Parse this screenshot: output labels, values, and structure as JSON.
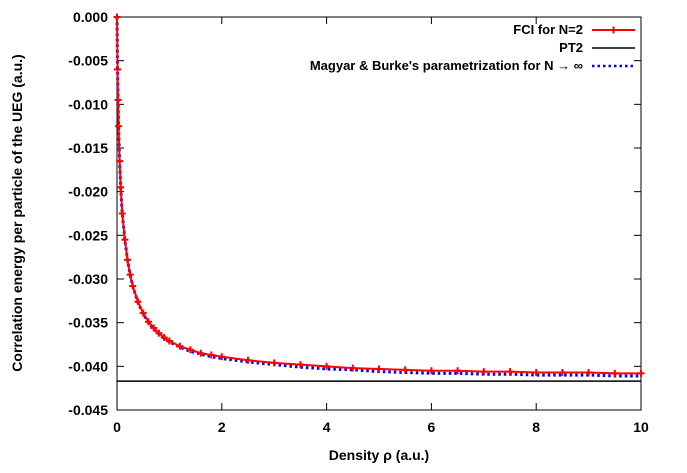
{
  "chart_data": {
    "type": "line",
    "xlabel": "Density  ρ (a.u.)",
    "ylabel": "Correlation energy per particle of the UEG (a.u.)",
    "xlim": [
      0,
      10
    ],
    "ylim": [
      -0.045,
      0.0
    ],
    "x_ticks": [
      0,
      2,
      4,
      6,
      8,
      10
    ],
    "x_tick_labels": [
      "0",
      "2",
      "4",
      "6",
      "8",
      "10"
    ],
    "y_ticks": [
      0.0,
      -0.005,
      -0.01,
      -0.015,
      -0.02,
      -0.025,
      -0.03,
      -0.035,
      -0.04,
      -0.045
    ],
    "y_tick_labels": [
      "0.000",
      "-0.005",
      "-0.010",
      "-0.015",
      "-0.020",
      "-0.025",
      "-0.030",
      "-0.035",
      "-0.040",
      "-0.045"
    ],
    "grid": false,
    "legend_position": "top-right",
    "series": [
      {
        "name": "FCI for N=2",
        "color": "#ff0000",
        "style": "line+markers",
        "x": [
          0.0,
          0.01,
          0.02,
          0.03,
          0.05,
          0.07,
          0.1,
          0.15,
          0.2,
          0.25,
          0.3,
          0.4,
          0.5,
          0.6,
          0.7,
          0.8,
          0.9,
          1.0,
          1.2,
          1.4,
          1.6,
          1.8,
          2.0,
          2.5,
          3.0,
          3.5,
          4.0,
          4.5,
          5.0,
          5.5,
          6.0,
          6.5,
          7.0,
          7.5,
          8.0,
          8.5,
          9.0,
          9.5,
          10.0
        ],
        "y": [
          0.0,
          -0.006,
          -0.0095,
          -0.0125,
          -0.0165,
          -0.0195,
          -0.0225,
          -0.0255,
          -0.0278,
          -0.0295,
          -0.0308,
          -0.0326,
          -0.0339,
          -0.0349,
          -0.0356,
          -0.0362,
          -0.0367,
          -0.0371,
          -0.0377,
          -0.0381,
          -0.0385,
          -0.0387,
          -0.0389,
          -0.0393,
          -0.0396,
          -0.0398,
          -0.04,
          -0.0402,
          -0.0403,
          -0.0404,
          -0.0405,
          -0.0405,
          -0.0406,
          -0.0406,
          -0.0407,
          -0.0407,
          -0.0407,
          -0.0408,
          -0.0408
        ]
      },
      {
        "name": "PT2",
        "color": "#000000",
        "style": "line",
        "x": [
          0,
          10
        ],
        "y": [
          -0.0417,
          -0.0417
        ]
      },
      {
        "name": "Magyar & Burke's parametrization for N → ∞",
        "color": "#0000ff",
        "style": "dotted",
        "x": [
          0.0,
          0.01,
          0.02,
          0.03,
          0.05,
          0.07,
          0.1,
          0.15,
          0.2,
          0.25,
          0.3,
          0.4,
          0.5,
          0.6,
          0.7,
          0.8,
          0.9,
          1.0,
          1.2,
          1.4,
          1.6,
          1.8,
          2.0,
          2.5,
          3.0,
          3.5,
          4.0,
          4.5,
          5.0,
          5.5,
          6.0,
          6.5,
          7.0,
          7.5,
          8.0,
          8.5,
          9.0,
          9.5,
          10.0
        ],
        "y": [
          0.0,
          -0.006,
          -0.0095,
          -0.0125,
          -0.0165,
          -0.0195,
          -0.0225,
          -0.0255,
          -0.0278,
          -0.0295,
          -0.0308,
          -0.0327,
          -0.034,
          -0.035,
          -0.0357,
          -0.0363,
          -0.0368,
          -0.0372,
          -0.0378,
          -0.0383,
          -0.0386,
          -0.0389,
          -0.0391,
          -0.0395,
          -0.0398,
          -0.0401,
          -0.0403,
          -0.0404,
          -0.0406,
          -0.0407,
          -0.0408,
          -0.0408,
          -0.0409,
          -0.0409,
          -0.041,
          -0.041,
          -0.041,
          -0.0411,
          -0.0411
        ]
      }
    ]
  }
}
